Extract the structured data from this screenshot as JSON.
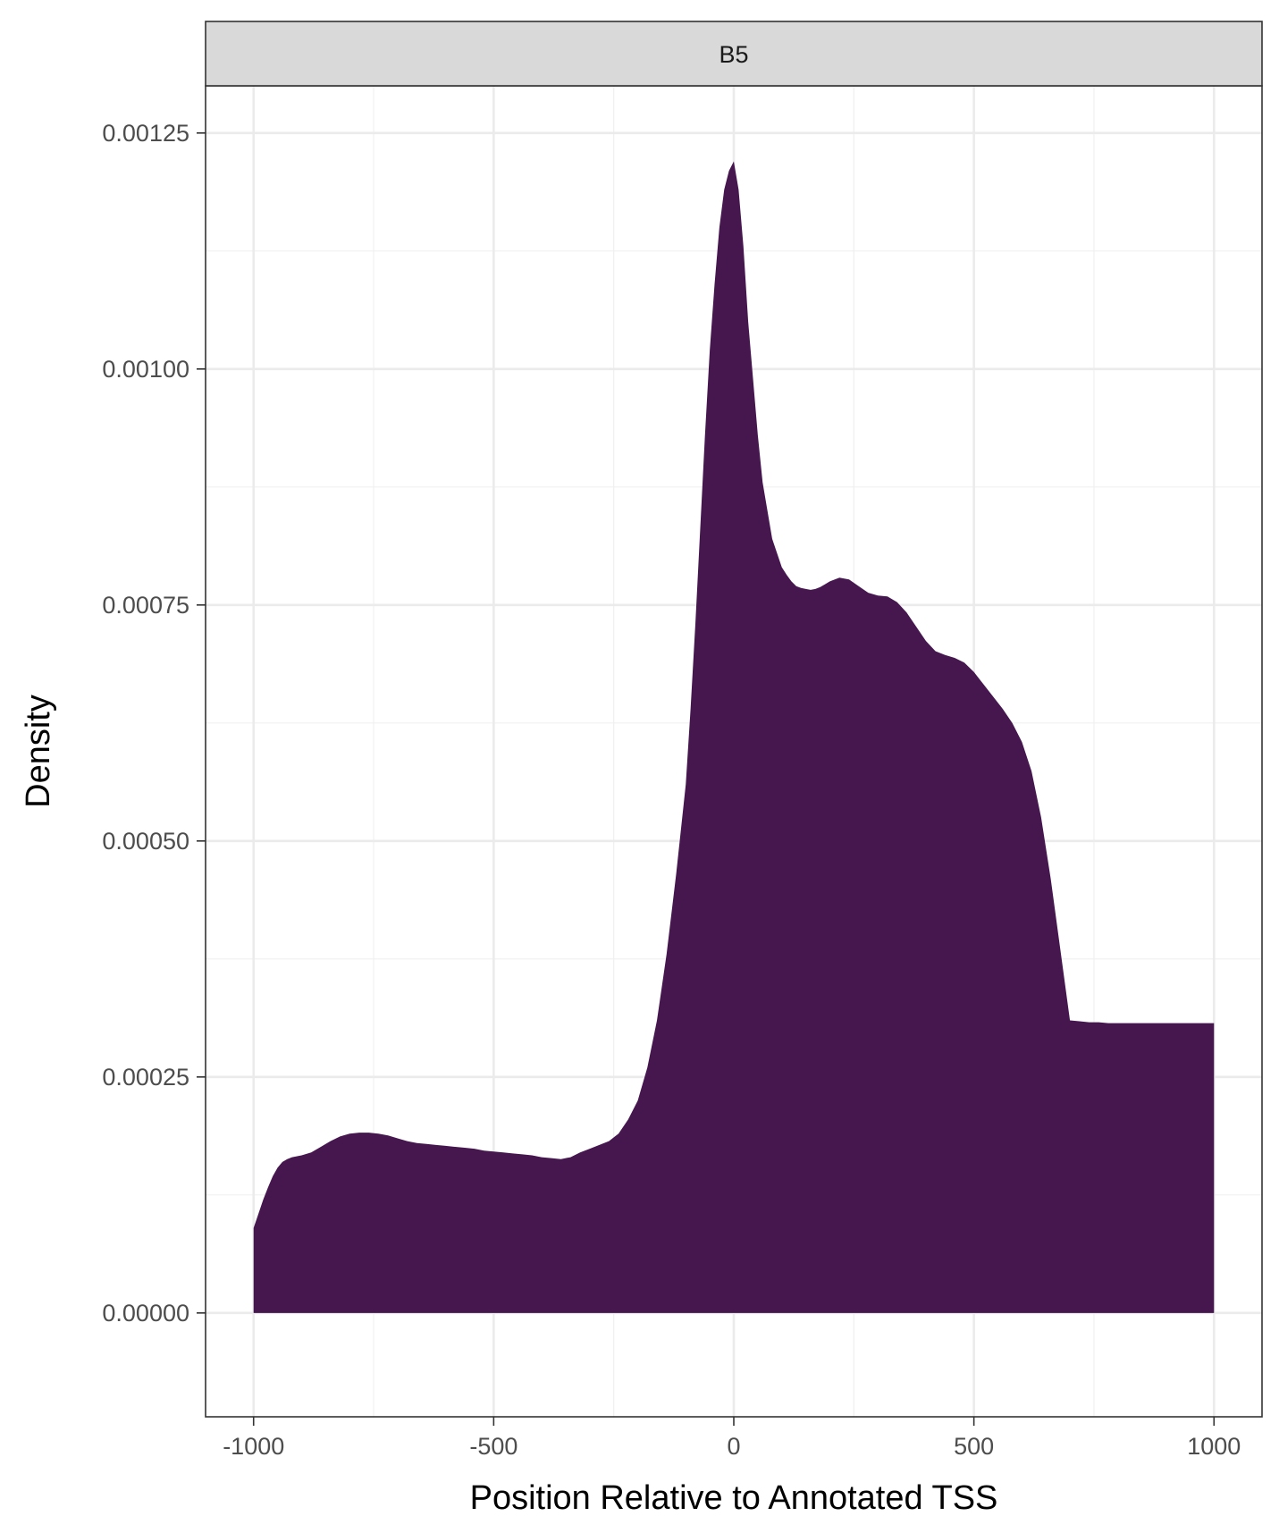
{
  "chart_data": {
    "type": "area",
    "facet_label": "B5",
    "xlabel": "Position Relative to Annotated TSS",
    "ylabel": "Density",
    "xlim": [
      -1100,
      1100
    ],
    "ylim": [
      -0.00011,
      0.0013
    ],
    "x_ticks": [
      -1000,
      -500,
      0,
      500,
      1000
    ],
    "x_tick_labels": [
      "-1000",
      "-500",
      "0",
      "500",
      "1000"
    ],
    "y_ticks": [
      0,
      0.00025,
      0.0005,
      0.00075,
      0.001,
      0.00125
    ],
    "y_tick_labels": [
      "0.00000",
      "0.00025",
      "0.00050",
      "0.00075",
      "0.00100",
      "0.00125"
    ],
    "grid": true,
    "fill_color": "#46164f",
    "series": [
      {
        "x": [
          -1000,
          -990,
          -980,
          -970,
          -960,
          -950,
          -940,
          -930,
          -920,
          -900,
          -880,
          -860,
          -840,
          -820,
          -800,
          -780,
          -760,
          -740,
          -720,
          -700,
          -680,
          -660,
          -640,
          -620,
          -600,
          -580,
          -560,
          -540,
          -520,
          -500,
          -480,
          -460,
          -440,
          -420,
          -400,
          -380,
          -360,
          -340,
          -320,
          -300,
          -280,
          -260,
          -240,
          -220,
          -200,
          -180,
          -160,
          -140,
          -120,
          -100,
          -90,
          -80,
          -70,
          -60,
          -50,
          -40,
          -30,
          -20,
          -10,
          0,
          10,
          20,
          30,
          40,
          50,
          60,
          70,
          80,
          90,
          100,
          110,
          120,
          130,
          140,
          150,
          160,
          170,
          180,
          190,
          200,
          220,
          240,
          260,
          280,
          300,
          320,
          340,
          360,
          380,
          400,
          420,
          440,
          460,
          480,
          500,
          520,
          540,
          560,
          580,
          600,
          620,
          640,
          660,
          680,
          700,
          720,
          740,
          760,
          780,
          800,
          820,
          840,
          860,
          880,
          900,
          920,
          940,
          960,
          980,
          1000
        ],
        "y": [
          9e-05,
          0.000105,
          0.00012,
          0.000133,
          0.000145,
          0.000154,
          0.00016,
          0.000163,
          0.000165,
          0.000167,
          0.00017,
          0.000176,
          0.000182,
          0.000187,
          0.00019,
          0.000191,
          0.000191,
          0.00019,
          0.000188,
          0.000185,
          0.000182,
          0.00018,
          0.000179,
          0.000178,
          0.000177,
          0.000176,
          0.000175,
          0.000174,
          0.000172,
          0.000171,
          0.00017,
          0.000169,
          0.000168,
          0.000167,
          0.000165,
          0.000164,
          0.000163,
          0.000165,
          0.00017,
          0.000174,
          0.000178,
          0.000182,
          0.00019,
          0.000205,
          0.000225,
          0.00026,
          0.00031,
          0.00038,
          0.000465,
          0.00056,
          0.00064,
          0.00073,
          0.00083,
          0.00093,
          0.00102,
          0.00109,
          0.00115,
          0.00119,
          0.00121,
          0.00122,
          0.00119,
          0.00113,
          0.00105,
          0.00099,
          0.00093,
          0.00088,
          0.00085,
          0.00082,
          0.000805,
          0.00079,
          0.000782,
          0.000775,
          0.00077,
          0.000768,
          0.000767,
          0.000766,
          0.000767,
          0.000769,
          0.000772,
          0.000775,
          0.000779,
          0.000777,
          0.00077,
          0.000763,
          0.00076,
          0.000759,
          0.000753,
          0.000742,
          0.000727,
          0.000712,
          0.000701,
          0.000697,
          0.000694,
          0.000689,
          0.000679,
          0.000666,
          0.000653,
          0.00064,
          0.000625,
          0.000605,
          0.000574,
          0.000525,
          0.00046,
          0.000385,
          0.00031,
          0.000309,
          0.000308,
          0.000308,
          0.000307,
          0.000307,
          0.000307,
          0.000307,
          0.000307,
          0.000307,
          0.000307,
          0.000307,
          0.000307,
          0.000307,
          0.000307,
          0.000307
        ],
        "x2": [
          -1000,
          -990,
          -980,
          -970,
          -960,
          -950,
          -940,
          -930,
          -920,
          -900,
          -880,
          -860,
          -840,
          -820,
          -800,
          -780,
          -760,
          -740,
          -720,
          -700,
          -680,
          -660,
          -640,
          -620,
          -600,
          -580,
          -560,
          -540,
          -520,
          -500,
          -480,
          -460,
          -440,
          -420,
          -400,
          -380,
          -360,
          -340,
          -320,
          -300,
          -280,
          -260,
          -240,
          -220,
          -200,
          -180,
          -160,
          -140,
          -120,
          -100,
          -90,
          -80,
          -70,
          -60,
          -50,
          -40,
          -30,
          -20,
          -10,
          0,
          10,
          20,
          30,
          40,
          50,
          60,
          70,
          80,
          90,
          100,
          110,
          120,
          130,
          140,
          150,
          160,
          170,
          180,
          190,
          200,
          220,
          240,
          260,
          280,
          300,
          320,
          340,
          360,
          380,
          400,
          420,
          440,
          460,
          480,
          500,
          520,
          540,
          560,
          580,
          600,
          620,
          640,
          660,
          680,
          700,
          720,
          740,
          760,
          780,
          800,
          820,
          840,
          860,
          880,
          900,
          920,
          940,
          960,
          980,
          1000
        ]
      }
    ]
  }
}
